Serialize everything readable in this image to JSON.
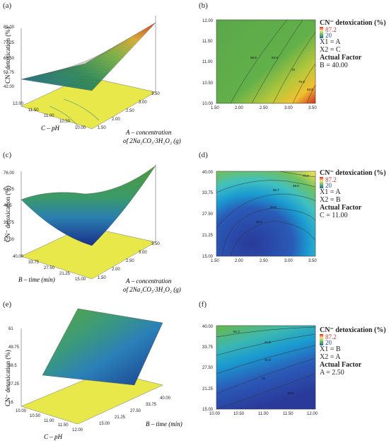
{
  "panels": {
    "a": {
      "label": "(a)",
      "zlabel": "CN⁻ detoxication (%)",
      "zticks": [
        "89.00",
        "77.25",
        "65.50",
        "53.75",
        "42.00"
      ],
      "xlabel_line1": "A – concentration",
      "xlabel_line2": "of 2Na₂CO₃·3H₂O₂ (g)",
      "xticks": [
        "1.50",
        "2.00",
        "2.50",
        "3.00",
        "3.50"
      ],
      "ylabel": "C – pH",
      "yticks": [
        "10.00",
        "10.50",
        "11.00",
        "11.50",
        "12.00"
      ]
    },
    "b": {
      "label": "(b)",
      "xticks": [
        "1.50",
        "2.00",
        "2.50",
        "3.00",
        "3.50"
      ],
      "yticks": [
        "10.00",
        "10.50",
        "11.00",
        "11.50",
        "12.00"
      ],
      "contour_labels": [
        "55.9",
        "62.9",
        "70",
        "76.8",
        "83.8"
      ]
    },
    "c": {
      "label": "(c)",
      "zlabel": "CN⁻ detoxication (%)",
      "zticks": [
        "76.00",
        "61.25",
        "46.5",
        "31.75",
        "17.00"
      ],
      "xlabel_line1": "A – concentration",
      "xlabel_line2": "of 2Na₂CO₃·3H₂O₂ (g)",
      "xticks": [
        "1.50",
        "2.00",
        "2.50",
        "3.00",
        "3.50"
      ],
      "ylabel": "B – time (min)",
      "yticks": [
        "15.00",
        "21.25",
        "27.50",
        "33.75",
        "40.00"
      ]
    },
    "d": {
      "label": "(d)",
      "xticks": [
        "1.50",
        "2.00",
        "2.50",
        "3.00",
        "3.50"
      ],
      "yticks": [
        "15.00",
        "21.25",
        "27.50",
        "33.75",
        "40.00"
      ],
      "contour_labels": [
        "32.6",
        "44.8",
        "56.7",
        "68.6",
        "70.5"
      ]
    },
    "e": {
      "label": "(e)",
      "zlabel": "CN⁻ detoxication (%)",
      "zticks": [
        "61",
        "49.75",
        "38.5",
        "27.25",
        "16"
      ],
      "xlabel": "C – pH",
      "xticks": [
        "10.00",
        "10.50",
        "11.00",
        "11.50",
        "12.00"
      ],
      "ylabel": "B – time (min)",
      "yticks": [
        "15.00",
        "21.25",
        "27.50",
        "33.75",
        "40.00"
      ]
    },
    "f": {
      "label": "(f)",
      "xticks": [
        "10.00",
        "10.50",
        "11.00",
        "11.50",
        "12.00"
      ],
      "yticks": [
        "15.00",
        "21.25",
        "27.50",
        "33.75",
        "40.00"
      ],
      "contour_labels": [
        "51.2",
        "41.5",
        "31.8",
        "22",
        "19.3"
      ]
    }
  },
  "legends": {
    "b": {
      "title": "CN⁻ detoxication (%)",
      "max": "87.2",
      "min": "20",
      "x1": "X1 = A",
      "x2": "X2 = C",
      "actual": "Actual Factor",
      "factor": "B = 40.00"
    },
    "d": {
      "title": "CN⁻ detoxication (%)",
      "max": "87.2",
      "min": "20",
      "x1": "X1 = A",
      "x2": "X2 = B",
      "actual": "Actual Factor",
      "factor": "C = 11.00"
    },
    "f": {
      "title": "CN⁻ detoxication (%)",
      "max": "87.2",
      "min": "20",
      "x1": "X1 = B",
      "x2": "X2 = A",
      "actual": "Actual Factor",
      "factor": "A = 2.50"
    }
  },
  "chart_data": [
    {
      "type": "surface3d",
      "panel": "a",
      "x": "A",
      "y": "C",
      "z_range": [
        42,
        89
      ],
      "x_range": [
        1.5,
        3.5
      ],
      "y_range": [
        10,
        12
      ],
      "corners": {
        "A1.5_C10": 48,
        "A3.5_C10": 89,
        "A1.5_C12": 44,
        "A3.5_C12": 72
      }
    },
    {
      "type": "contour",
      "panel": "b",
      "x_range": [
        1.5,
        3.5
      ],
      "y_range": [
        10,
        12
      ],
      "levels": [
        55.9,
        62.9,
        70,
        76.8,
        83.8
      ]
    },
    {
      "type": "surface3d",
      "panel": "c",
      "x": "A",
      "y": "B",
      "z_range": [
        17,
        76
      ],
      "x_range": [
        1.5,
        3.5
      ],
      "y_range": [
        15,
        40
      ],
      "corners": {
        "A1.5_B15": 45,
        "A3.5_B15": 40,
        "A1.5_B40": 55,
        "A3.5_B40": 76
      },
      "min": 20
    },
    {
      "type": "contour",
      "panel": "d",
      "x_range": [
        1.5,
        3.5
      ],
      "y_range": [
        15,
        40
      ],
      "levels": [
        32.6,
        44.8,
        56.7,
        68.6,
        70.5
      ]
    },
    {
      "type": "surface3d",
      "panel": "e",
      "x": "C",
      "y": "B",
      "z_range": [
        16,
        61
      ],
      "x_range": [
        10,
        12
      ],
      "y_range": [
        15,
        40
      ],
      "corners": {
        "C10_B15": 30,
        "C12_B15": 20,
        "C10_B40": 58,
        "C12_B40": 50
      }
    },
    {
      "type": "contour",
      "panel": "f",
      "x_range": [
        10,
        12
      ],
      "y_range": [
        15,
        40
      ],
      "levels": [
        51.2,
        41.5,
        31.8,
        22,
        19.3
      ]
    }
  ]
}
